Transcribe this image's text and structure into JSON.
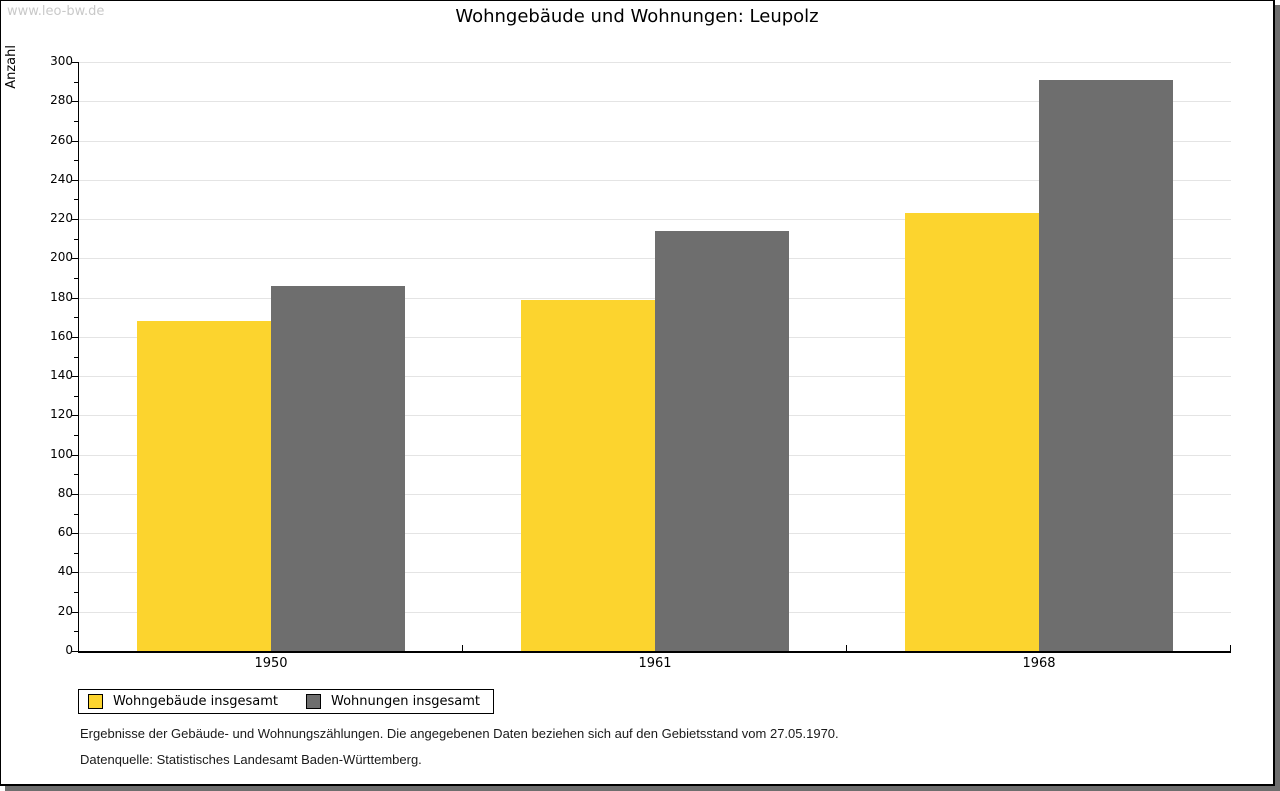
{
  "watermark": "www.leo-bw.de",
  "chart_data": {
    "type": "bar",
    "title": "Wohngebäude und Wohnungen: Leupolz",
    "ylabel": "Anzahl",
    "categories": [
      "1950",
      "1961",
      "1968"
    ],
    "series": [
      {
        "name": "Wohngebäude insgesamt",
        "color": "#FCD42E",
        "values": [
          168,
          179,
          223
        ]
      },
      {
        "name": "Wohnungen insgesamt",
        "color": "#6E6E6E",
        "values": [
          186,
          214,
          291
        ]
      }
    ],
    "ylim": [
      0,
      300
    ],
    "ytick_step": 20,
    "yminor_step": 10,
    "grid": true,
    "gridline_color": "#e4e4e4",
    "axis_color": "#000000",
    "legend_position": "bottom-left"
  },
  "footer": {
    "line1": "Ergebnisse der Gebäude- und Wohnungszählungen. Die angegebenen Daten beziehen sich auf den Gebietsstand vom 27.05.1970.",
    "line2": "Datenquelle: Statistisches Landesamt Baden-Württemberg."
  }
}
